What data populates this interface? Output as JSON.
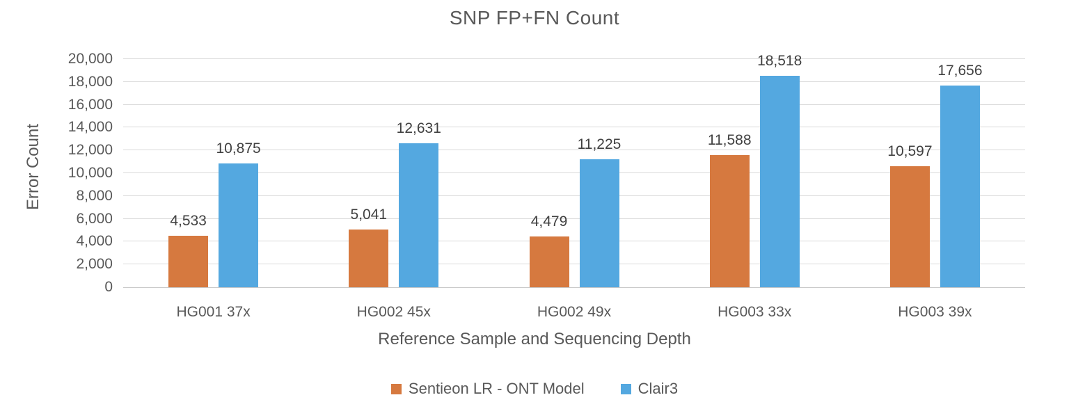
{
  "chart_data": {
    "type": "bar",
    "title": "SNP FP+FN Count",
    "xlabel": "Reference Sample and Sequencing Depth",
    "ylabel": "Error Count",
    "categories": [
      "HG001 37x",
      "HG002 45x",
      "HG002 49x",
      "HG003 33x",
      "HG003 39x"
    ],
    "series": [
      {
        "name": "Sentieon LR - ONT Model",
        "color": "#d6793f",
        "values": [
          4533,
          5041,
          4479,
          11588,
          10597
        ],
        "labels": [
          "4,533",
          "5,041",
          "4,479",
          "11,588",
          "10,597"
        ]
      },
      {
        "name": "Clair3",
        "color": "#54a8e0",
        "values": [
          10875,
          12631,
          11225,
          18518,
          17656
        ],
        "labels": [
          "10,875",
          "12,631",
          "11,225",
          "18,518",
          "17,656"
        ]
      }
    ],
    "ylim": [
      0,
      20000
    ],
    "ytick_step": 2000,
    "ytick_labels": [
      "0",
      "2,000",
      "4,000",
      "6,000",
      "8,000",
      "10,000",
      "12,000",
      "14,000",
      "16,000",
      "18,000",
      "20,000"
    ],
    "grid": "horizontal",
    "legend_position": "bottom"
  },
  "colors": {
    "title_text": "#595959",
    "axis_text": "#595959",
    "data_label_text": "#404040",
    "gridline": "#d9d9d9",
    "background": "#ffffff"
  }
}
